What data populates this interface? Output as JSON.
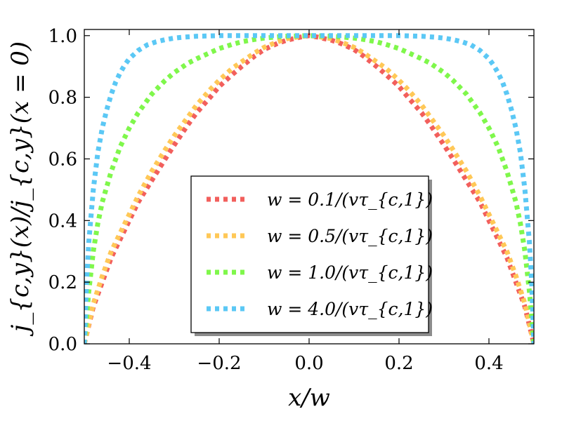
{
  "chart_data": {
    "type": "line",
    "title": "",
    "xlabel": "x/w",
    "ylabel": "j_{c,y}(x)/j_{c,y}(x = 0)",
    "xlim": [
      -0.5,
      0.5
    ],
    "ylim": [
      0.0,
      1.02
    ],
    "xticks": [
      -0.4,
      -0.2,
      0.0,
      0.2,
      0.4
    ],
    "xtick_labels": [
      "−0.4",
      "−0.2",
      "0.0",
      "0.2",
      "0.4"
    ],
    "yticks": [
      0.0,
      0.2,
      0.4,
      0.6,
      0.8,
      1.0
    ],
    "ytick_labels": [
      "0.0",
      "0.2",
      "0.4",
      "0.6",
      "0.8",
      "1.0"
    ],
    "grid": false,
    "legend_position": "lower-center",
    "line_style": "dotted",
    "series": [
      {
        "name": "w = 0.1/(vτ_{c,1})",
        "color": "#f25f5c",
        "x": [
          -0.5,
          -0.49,
          -0.48,
          -0.46,
          -0.44,
          -0.42,
          -0.4,
          -0.38,
          -0.35,
          -0.32,
          -0.3,
          -0.27,
          -0.25,
          -0.22,
          -0.2,
          -0.17,
          -0.15,
          -0.12,
          -0.1,
          -0.07,
          -0.05,
          -0.02,
          0.0,
          0.02,
          0.05,
          0.07,
          0.1,
          0.12,
          0.15,
          0.17,
          0.2,
          0.22,
          0.25,
          0.27,
          0.3,
          0.32,
          0.35,
          0.38,
          0.4,
          0.42,
          0.44,
          0.46,
          0.48,
          0.49,
          0.5
        ],
        "y": [
          0.0,
          0.06,
          0.12,
          0.2,
          0.28,
          0.34,
          0.4,
          0.46,
          0.53,
          0.6,
          0.645,
          0.71,
          0.75,
          0.8,
          0.835,
          0.875,
          0.9,
          0.935,
          0.955,
          0.975,
          0.985,
          0.995,
          1.0,
          0.995,
          0.985,
          0.975,
          0.955,
          0.935,
          0.9,
          0.875,
          0.835,
          0.8,
          0.75,
          0.71,
          0.645,
          0.6,
          0.53,
          0.46,
          0.4,
          0.34,
          0.28,
          0.2,
          0.12,
          0.06,
          0.0
        ]
      },
      {
        "name": "w = 0.5/(vτ_{c,1})",
        "color": "#ffc857",
        "x": [
          -0.5,
          -0.49,
          -0.48,
          -0.46,
          -0.44,
          -0.42,
          -0.4,
          -0.38,
          -0.35,
          -0.32,
          -0.3,
          -0.27,
          -0.25,
          -0.22,
          -0.2,
          -0.17,
          -0.15,
          -0.12,
          -0.1,
          -0.07,
          -0.05,
          -0.02,
          0.0,
          0.02,
          0.05,
          0.07,
          0.1,
          0.12,
          0.15,
          0.17,
          0.2,
          0.22,
          0.25,
          0.27,
          0.3,
          0.32,
          0.35,
          0.38,
          0.4,
          0.42,
          0.44,
          0.46,
          0.48,
          0.49,
          0.5
        ],
        "y": [
          0.0,
          0.065,
          0.13,
          0.22,
          0.3,
          0.36,
          0.42,
          0.48,
          0.56,
          0.63,
          0.675,
          0.735,
          0.775,
          0.825,
          0.855,
          0.895,
          0.915,
          0.945,
          0.962,
          0.98,
          0.99,
          0.997,
          1.0,
          0.997,
          0.99,
          0.98,
          0.962,
          0.945,
          0.915,
          0.895,
          0.855,
          0.825,
          0.775,
          0.735,
          0.675,
          0.63,
          0.56,
          0.48,
          0.42,
          0.36,
          0.3,
          0.22,
          0.13,
          0.065,
          0.0
        ]
      },
      {
        "name": "w = 1.0/(vτ_{c,1})",
        "color": "#7ff74b",
        "x": [
          -0.5,
          -0.49,
          -0.48,
          -0.47,
          -0.46,
          -0.44,
          -0.42,
          -0.4,
          -0.38,
          -0.35,
          -0.32,
          -0.3,
          -0.27,
          -0.25,
          -0.22,
          -0.2,
          -0.17,
          -0.15,
          -0.12,
          -0.1,
          -0.07,
          -0.05,
          0.0,
          0.05,
          0.07,
          0.1,
          0.12,
          0.15,
          0.17,
          0.2,
          0.22,
          0.25,
          0.27,
          0.3,
          0.32,
          0.35,
          0.38,
          0.4,
          0.42,
          0.44,
          0.46,
          0.47,
          0.48,
          0.49,
          0.5
        ],
        "y": [
          0.0,
          0.17,
          0.3,
          0.39,
          0.46,
          0.56,
          0.64,
          0.7,
          0.75,
          0.81,
          0.855,
          0.88,
          0.91,
          0.925,
          0.945,
          0.958,
          0.972,
          0.98,
          0.988,
          0.992,
          0.996,
          0.998,
          1.0,
          0.998,
          0.996,
          0.992,
          0.988,
          0.98,
          0.972,
          0.958,
          0.945,
          0.925,
          0.91,
          0.88,
          0.855,
          0.81,
          0.75,
          0.7,
          0.64,
          0.56,
          0.46,
          0.39,
          0.3,
          0.17,
          0.0
        ]
      },
      {
        "name": "w = 4.0/(vτ_{c,1})",
        "color": "#5bc8f5",
        "x": [
          -0.5,
          -0.495,
          -0.49,
          -0.48,
          -0.47,
          -0.46,
          -0.45,
          -0.44,
          -0.43,
          -0.42,
          -0.41,
          -0.4,
          -0.38,
          -0.36,
          -0.34,
          -0.32,
          -0.3,
          -0.28,
          -0.25,
          -0.2,
          -0.1,
          0.0,
          0.1,
          0.2,
          0.25,
          0.28,
          0.3,
          0.32,
          0.34,
          0.36,
          0.38,
          0.4,
          0.41,
          0.42,
          0.43,
          0.44,
          0.45,
          0.46,
          0.47,
          0.48,
          0.49,
          0.495,
          0.5
        ],
        "y": [
          0.0,
          0.2,
          0.33,
          0.5,
          0.62,
          0.7,
          0.76,
          0.81,
          0.85,
          0.88,
          0.905,
          0.925,
          0.952,
          0.97,
          0.98,
          0.987,
          0.992,
          0.995,
          0.998,
          1.0,
          1.0,
          1.0,
          1.0,
          1.0,
          0.998,
          0.995,
          0.992,
          0.987,
          0.98,
          0.97,
          0.952,
          0.925,
          0.905,
          0.88,
          0.85,
          0.81,
          0.76,
          0.7,
          0.62,
          0.5,
          0.33,
          0.2,
          0.0
        ]
      }
    ]
  }
}
